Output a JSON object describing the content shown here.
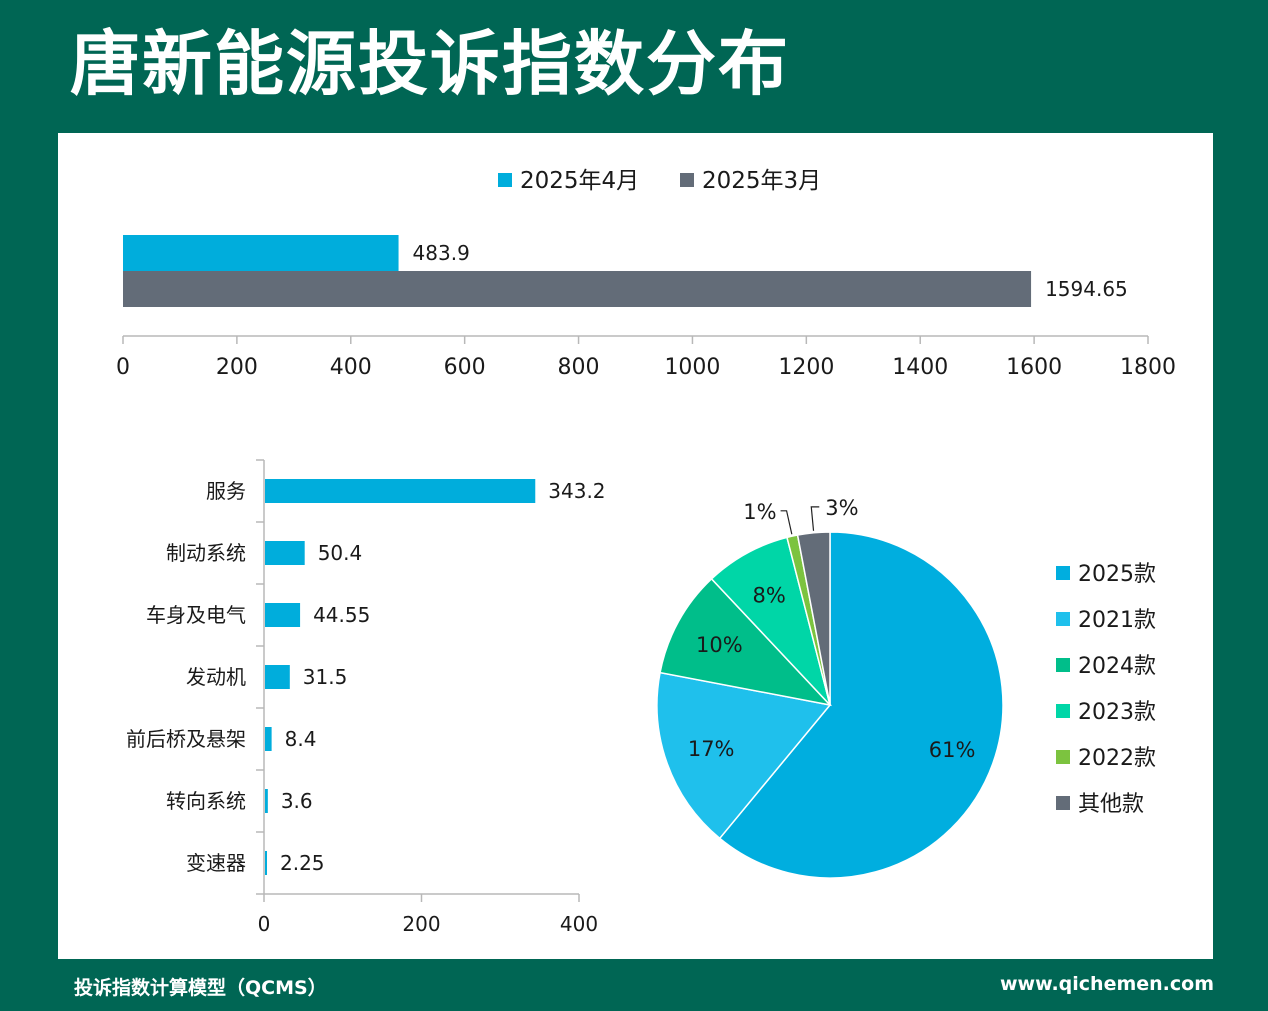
{
  "header": {
    "title": "唐新能源投诉指数分布"
  },
  "footer": {
    "left": "投诉指数计算模型（QCMS）",
    "right": "www.qichemen.com"
  },
  "colors": {
    "background": "#006654",
    "apr": "#00ADDC",
    "mar": "#636C78",
    "pie": [
      "#00AEDF",
      "#1FC0EC",
      "#00BE8A",
      "#00D6A7",
      "#7CC33F",
      "#636C78"
    ]
  },
  "chart_data": [
    {
      "type": "bar",
      "orientation": "horizontal",
      "series": [
        {
          "name": "2025年4月",
          "values": [
            483.9
          ]
        },
        {
          "name": "2025年3月",
          "values": [
            1594.65
          ]
        }
      ],
      "value_labels": [
        "483.9",
        "1594.65"
      ],
      "xticks": [
        "0",
        "200",
        "400",
        "600",
        "800",
        "1000",
        "1200",
        "1400",
        "1600",
        "1800"
      ],
      "xlim": [
        0,
        1800
      ],
      "legend": "top-center"
    },
    {
      "type": "bar",
      "orientation": "horizontal",
      "categories": [
        "服务",
        "制动系统",
        "车身及电气",
        "发动机",
        "前后桥及悬架",
        "转向系统",
        "变速器"
      ],
      "values": [
        343.2,
        50.4,
        44.55,
        31.5,
        8.4,
        3.6,
        2.25
      ],
      "value_labels": [
        "343.2",
        "50.4",
        "44.55",
        "31.5",
        "8.4",
        "3.6",
        "2.25"
      ],
      "xticks": [
        "0",
        "200",
        "400"
      ],
      "xlim": [
        0,
        400
      ]
    },
    {
      "type": "pie",
      "labels": [
        "2025款",
        "2021款",
        "2024款",
        "2023款",
        "2022款",
        "其他款"
      ],
      "values": [
        61,
        17,
        10,
        8,
        1,
        3
      ],
      "value_labels": [
        "61%",
        "17%",
        "10%",
        "8%",
        "1%",
        "3%"
      ],
      "legend": "right"
    }
  ]
}
